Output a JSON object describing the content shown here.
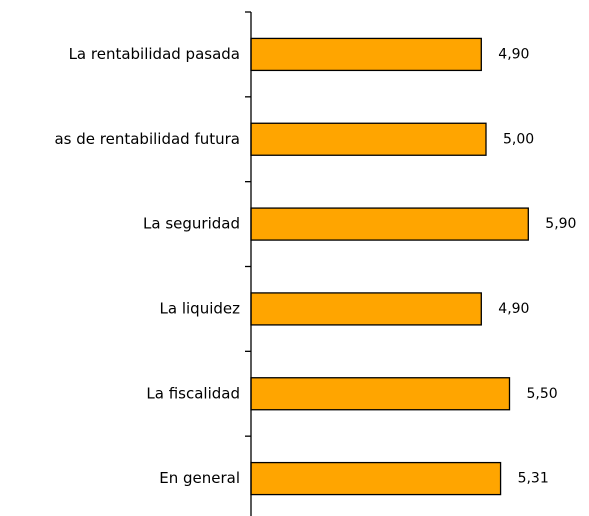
{
  "chart_data": {
    "type": "bar",
    "orientation": "horizontal",
    "categories": [
      "La rentabilidad pasada",
      "as de rentabilidad futura",
      "La seguridad",
      "La liquidez",
      "La fiscalidad",
      "En general"
    ],
    "values": [
      4.9,
      5.0,
      5.9,
      4.9,
      5.5,
      5.31
    ],
    "value_labels": [
      "4,90",
      "5,00",
      "5,90",
      "4,90",
      "5,50",
      "5,31"
    ],
    "color": "#ffa500",
    "xlim": [
      0,
      10
    ]
  }
}
